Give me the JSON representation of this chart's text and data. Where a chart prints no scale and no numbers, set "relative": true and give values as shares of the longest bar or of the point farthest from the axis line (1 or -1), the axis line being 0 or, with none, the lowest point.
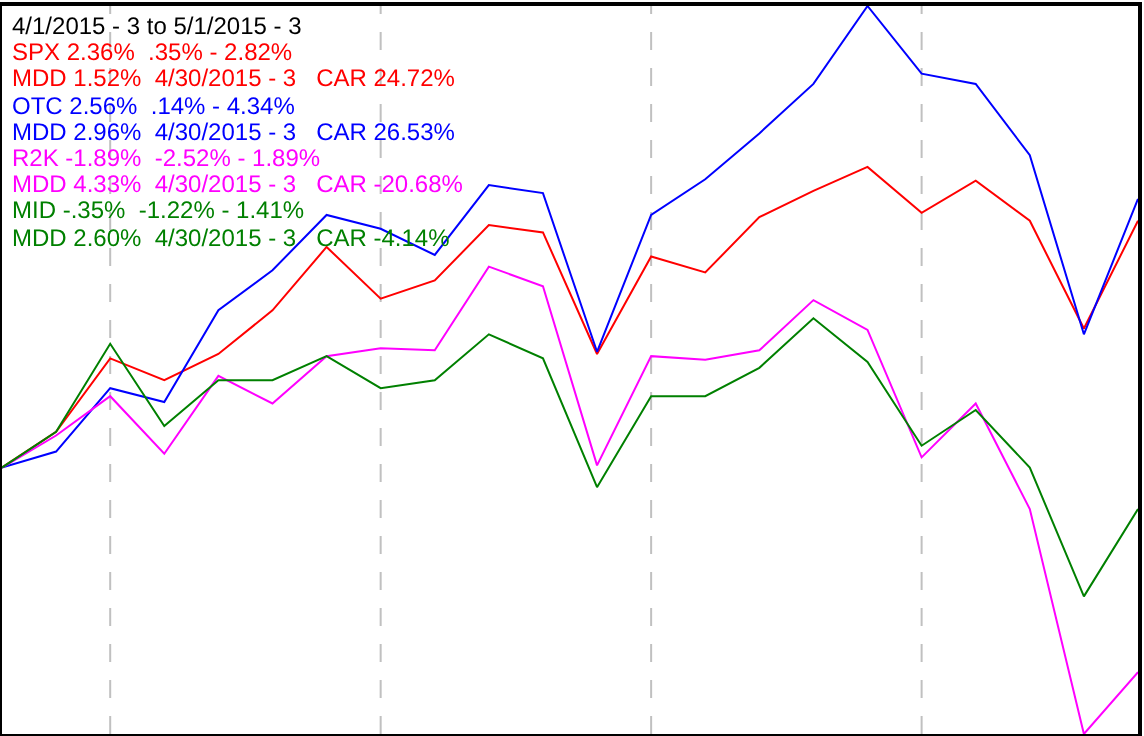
{
  "chart_data": {
    "type": "line",
    "title": "4/1/2015 - 3 to 5/1/2015 - 3",
    "relative": true,
    "categories": [
      null,
      null,
      null,
      null,
      null,
      null,
      null,
      null,
      null,
      null,
      null,
      null,
      null,
      null,
      null,
      null,
      null,
      null,
      null,
      null,
      null,
      null
    ],
    "grid": "x",
    "legend": false,
    "marker": "none",
    "line_style": "solid",
    "series": [
      {
        "name": "SPX 2.36%  .35% - 2.82%\nMDD 1.52%  4/30/2015 - 3   CAR 24.72%",
        "color": "#ff0000",
        "values": [
          0.366,
          0.415,
          0.516,
          0.486,
          0.522,
          0.582,
          0.669,
          0.598,
          0.623,
          0.699,
          0.689,
          0.522,
          0.656,
          0.634,
          0.71,
          0.746,
          0.779,
          0.716,
          0.76,
          0.705,
          0.557,
          0.705
        ]
      },
      {
        "name": "OTC 2.56%  .14% - 4.34%\nMDD 2.96%  4/30/2015 - 3   CAR 26.53%",
        "color": "#0000ff",
        "values": [
          0.366,
          0.388,
          0.475,
          0.456,
          0.582,
          0.637,
          0.713,
          0.694,
          0.658,
          0.754,
          0.743,
          0.525,
          0.713,
          0.762,
          0.825,
          0.893,
          1.0,
          0.907,
          0.893,
          0.795,
          0.549,
          0.735
        ]
      },
      {
        "name": "R2K -1.89%  -2.52% - 1.89%\nMDD 4.33%  4/30/2015 - 3   CAR -20.68%",
        "color": "#ff00ff",
        "values": [
          0.366,
          0.41,
          0.464,
          0.385,
          0.492,
          0.454,
          0.519,
          0.53,
          0.527,
          0.642,
          0.615,
          0.369,
          0.519,
          0.514,
          0.527,
          0.596,
          0.555,
          0.38,
          0.454,
          0.309,
          0.0,
          0.085
        ]
      },
      {
        "name": "MID -.35%  -1.22% - 1.41%\nMDD 2.60%  4/30/2015 - 3   CAR -4.14%",
        "color": "#008000",
        "values": [
          0.366,
          0.415,
          0.536,
          0.423,
          0.486,
          0.486,
          0.519,
          0.475,
          0.486,
          0.549,
          0.516,
          0.339,
          0.464,
          0.464,
          0.503,
          0.571,
          0.511,
          0.396,
          0.445,
          0.366,
          0.189,
          0.309
        ]
      }
    ]
  }
}
